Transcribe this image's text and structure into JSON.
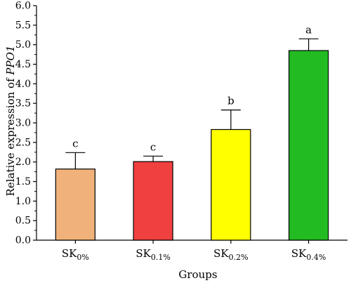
{
  "chart_data": {
    "type": "bar",
    "xlabel": "Groups",
    "ylabel_prefix": "Relative expression of ",
    "ylabel_gene": "PPO1",
    "ylim": [
      0,
      6.0
    ],
    "yticks": [
      "0.0",
      "0.5",
      "1.0",
      "1.5",
      "2.0",
      "2.5",
      "3.0",
      "3.5",
      "4.0",
      "4.5",
      "5.0",
      "5.5",
      "6.0"
    ],
    "grid": false,
    "categories": [
      {
        "base": "SK",
        "sub": "0%"
      },
      {
        "base": "SK",
        "sub": "0.1%"
      },
      {
        "base": "SK",
        "sub": "0.2%"
      },
      {
        "base": "SK",
        "sub": "0.4%"
      }
    ],
    "values": [
      1.82,
      2.01,
      2.83,
      4.85
    ],
    "errors": [
      0.42,
      0.14,
      0.5,
      0.3
    ],
    "significance": [
      "c",
      "c",
      "b",
      "a"
    ],
    "colors": [
      "#f0b27a",
      "#f04040",
      "#ffff00",
      "#22bb22"
    ]
  }
}
